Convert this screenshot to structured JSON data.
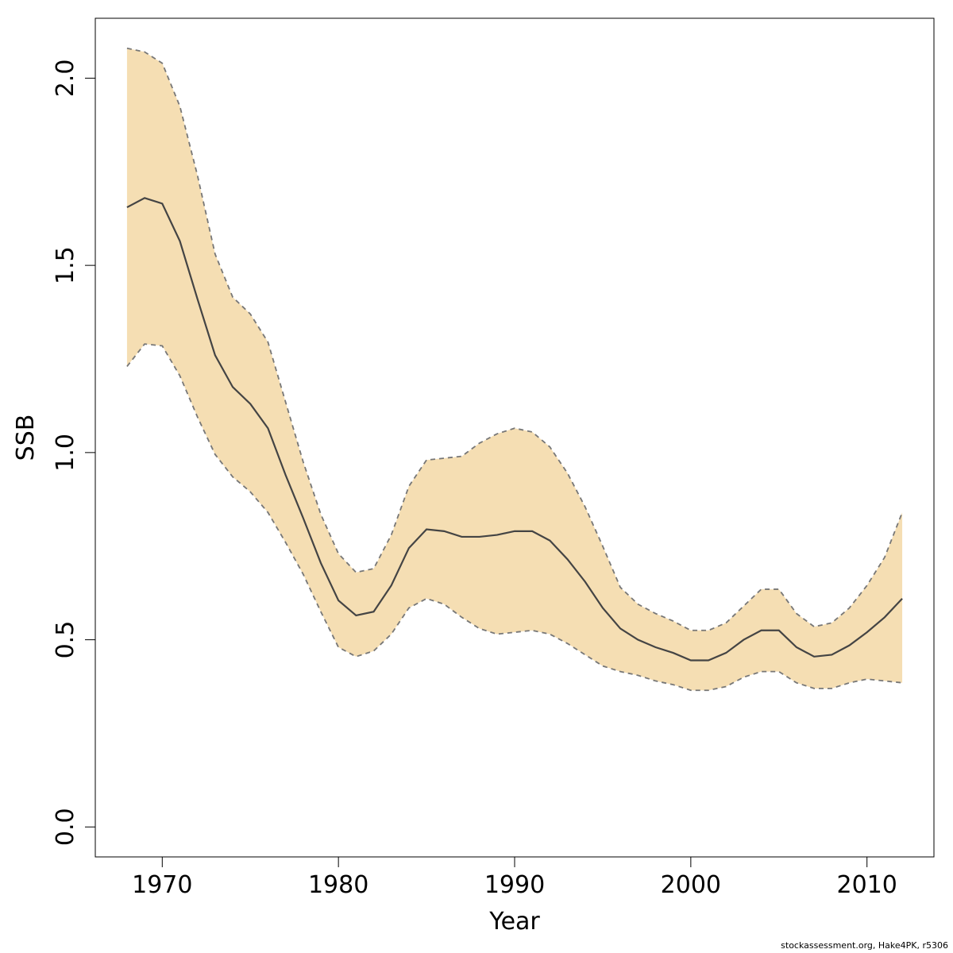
{
  "chart_data": {
    "type": "area",
    "title": "",
    "xlabel": "Year",
    "ylabel": "SSB",
    "xlim": [
      1966.2,
      2013.8
    ],
    "ylim": [
      -0.08,
      2.16
    ],
    "x_ticks": [
      1970,
      1980,
      1990,
      2000,
      2010
    ],
    "x_tick_labels": [
      "1970",
      "1980",
      "1990",
      "2000",
      "2010"
    ],
    "y_ticks": [
      0.0,
      0.5,
      1.0,
      1.5,
      2.0
    ],
    "y_tick_labels": [
      "0.0",
      "0.5",
      "1.0",
      "1.5",
      "2.0"
    ],
    "grid": false,
    "colors": {
      "band": "#f5deb3",
      "median": "#444444",
      "bounds": "#777777"
    },
    "x": [
      1968,
      1969,
      1970,
      1971,
      1972,
      1973,
      1974,
      1975,
      1976,
      1977,
      1978,
      1979,
      1980,
      1981,
      1982,
      1983,
      1984,
      1985,
      1986,
      1987,
      1988,
      1989,
      1990,
      1991,
      1992,
      1993,
      1994,
      1995,
      1996,
      1997,
      1998,
      1999,
      2000,
      2001,
      2002,
      2003,
      2004,
      2005,
      2006,
      2007,
      2008,
      2009,
      2010,
      2011,
      2012
    ],
    "series": [
      {
        "role": "median",
        "values": [
          1.655,
          1.68,
          1.665,
          1.565,
          1.41,
          1.26,
          1.175,
          1.13,
          1.065,
          0.94,
          0.825,
          0.705,
          0.605,
          0.565,
          0.575,
          0.645,
          0.745,
          0.795,
          0.79,
          0.775,
          0.775,
          0.78,
          0.79,
          0.79,
          0.765,
          0.715,
          0.655,
          0.585,
          0.53,
          0.5,
          0.48,
          0.465,
          0.445,
          0.445,
          0.465,
          0.5,
          0.525,
          0.525,
          0.48,
          0.455,
          0.46,
          0.485,
          0.52,
          0.56,
          0.61
        ]
      },
      {
        "role": "upper",
        "values": [
          2.08,
          2.07,
          2.04,
          1.925,
          1.74,
          1.53,
          1.415,
          1.37,
          1.295,
          1.135,
          0.975,
          0.835,
          0.73,
          0.68,
          0.69,
          0.78,
          0.91,
          0.98,
          0.985,
          0.99,
          1.025,
          1.05,
          1.065,
          1.055,
          1.015,
          0.945,
          0.855,
          0.75,
          0.64,
          0.595,
          0.57,
          0.55,
          0.525,
          0.525,
          0.545,
          0.59,
          0.635,
          0.635,
          0.57,
          0.535,
          0.545,
          0.585,
          0.645,
          0.72,
          0.84
        ]
      },
      {
        "role": "lower",
        "values": [
          1.23,
          1.29,
          1.285,
          1.205,
          1.095,
          0.995,
          0.935,
          0.895,
          0.84,
          0.76,
          0.675,
          0.575,
          0.48,
          0.455,
          0.47,
          0.515,
          0.585,
          0.61,
          0.595,
          0.56,
          0.53,
          0.515,
          0.52,
          0.525,
          0.515,
          0.49,
          0.46,
          0.43,
          0.415,
          0.405,
          0.39,
          0.38,
          0.365,
          0.365,
          0.375,
          0.4,
          0.415,
          0.415,
          0.385,
          0.37,
          0.37,
          0.385,
          0.395,
          0.39,
          0.385
        ]
      }
    ]
  },
  "credit": "stockassessment.org, Hake4PK, r5306"
}
